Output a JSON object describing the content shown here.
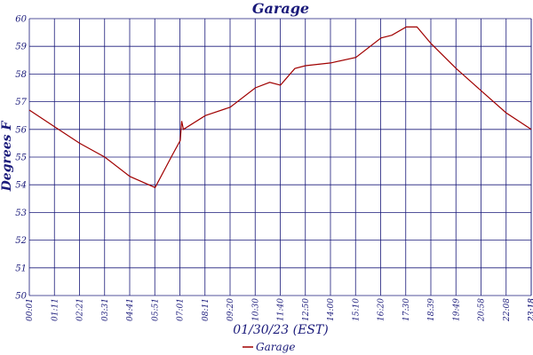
{
  "chart_data": {
    "type": "line",
    "title": "Garage",
    "xlabel": "01/30/23 (EST)",
    "ylabel": "Degrees F",
    "ylim": [
      50,
      60
    ],
    "yticks": [
      "50",
      "51",
      "52",
      "53",
      "54",
      "55",
      "56",
      "57",
      "58",
      "59",
      "60"
    ],
    "xticks": [
      "00:01",
      "01:11",
      "02:21",
      "03:31",
      "04:41",
      "05:51",
      "07:01",
      "08:11",
      "09:20",
      "10:30",
      "11:40",
      "12:50",
      "14:00",
      "15:10",
      "16:20",
      "17:30",
      "18:39",
      "19:49",
      "20:58",
      "22:08",
      "23:18",
      "23:18"
    ],
    "grid": true,
    "legend_position": "bottom-center",
    "series": [
      {
        "name": "Garage",
        "color": "#a00000",
        "points": [
          [
            "00:01",
            56.7
          ],
          [
            "01:11",
            56.1
          ],
          [
            "02:21",
            55.5
          ],
          [
            "03:31",
            55.0
          ],
          [
            "04:41",
            54.3
          ],
          [
            "05:51",
            53.9
          ],
          [
            "06:40",
            55.1
          ],
          [
            "07:01",
            55.6
          ],
          [
            "07:05",
            56.3
          ],
          [
            "07:10",
            56.0
          ],
          [
            "08:11",
            56.5
          ],
          [
            "09:20",
            56.8
          ],
          [
            "10:30",
            57.5
          ],
          [
            "11:10",
            57.7
          ],
          [
            "11:40",
            57.6
          ],
          [
            "12:20",
            58.2
          ],
          [
            "12:50",
            58.3
          ],
          [
            "14:00",
            58.4
          ],
          [
            "15:10",
            58.6
          ],
          [
            "16:20",
            59.3
          ],
          [
            "16:50",
            59.4
          ],
          [
            "17:30",
            59.7
          ],
          [
            "18:00",
            59.7
          ],
          [
            "18:39",
            59.1
          ],
          [
            "19:49",
            58.2
          ],
          [
            "20:58",
            57.4
          ],
          [
            "22:08",
            56.6
          ],
          [
            "23:18",
            56.0
          ]
        ]
      }
    ]
  }
}
